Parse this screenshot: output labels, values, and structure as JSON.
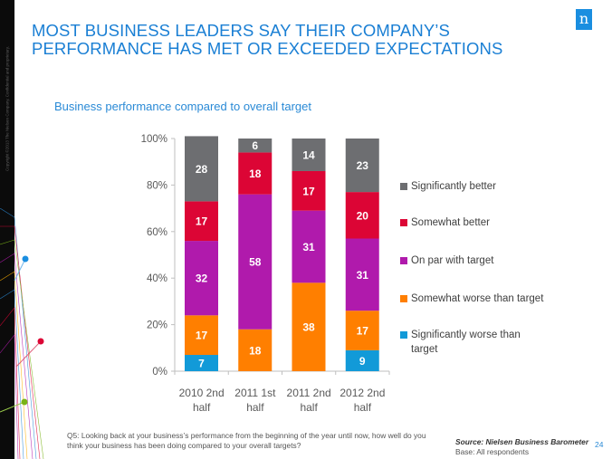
{
  "slide": {
    "copyright": "Copyright ©2013 The Nielsen Company. Confidential and proprietary.",
    "logo_letter": "n",
    "title": "MOST BUSINESS LEADERS SAY THEIR COMPANY’S PERFORMANCE HAS MET OR EXCEEDED EXPECTATIONS",
    "subtitle": "Business performance compared to overall target",
    "question": "Q5: Looking back at your business’s performance from the beginning of the year until now, how well do you think your business has been doing compared to your overall targets?",
    "source": "Source: Nielsen Business Barometer",
    "base": "Base: All respondents",
    "page_number": "24",
    "accent_color": "#1a7fd4"
  },
  "chart_data": {
    "type": "bar",
    "stacked": true,
    "title": "Business performance compared to overall target",
    "xlabel": "",
    "ylabel": "",
    "ylim": [
      0,
      100
    ],
    "y_ticks": [
      "0%",
      "20%",
      "40%",
      "60%",
      "80%",
      "100%"
    ],
    "y_tick_values": [
      0,
      20,
      40,
      60,
      80,
      100
    ],
    "grid": false,
    "legend_position": "right",
    "categories": [
      "2010 2nd half",
      "2011 1st half",
      "2011 2nd half",
      "2012 2nd half"
    ],
    "category_lines": [
      [
        "2010 2nd",
        "half"
      ],
      [
        "2011 1st",
        "half"
      ],
      [
        "2011 2nd",
        "half"
      ],
      [
        "2012 2nd",
        "half"
      ]
    ],
    "series": [
      {
        "name": "Significantly worse than target",
        "color": "#129ad8",
        "values": [
          7,
          0,
          0,
          9
        ]
      },
      {
        "name": "Somewhat worse than target",
        "color": "#ff7f00",
        "values": [
          17,
          18,
          38,
          17
        ]
      },
      {
        "name": "On par with target",
        "color": "#b01aac",
        "values": [
          32,
          58,
          31,
          31
        ]
      },
      {
        "name": "Somewhat better",
        "color": "#dc0535",
        "values": [
          17,
          18,
          17,
          20
        ]
      },
      {
        "name": "Significantly better",
        "color": "#6d6e71",
        "values": [
          28,
          6,
          14,
          23
        ]
      }
    ],
    "legend_order": [
      "Significantly better",
      "Somewhat better",
      "On par with target",
      "Somewhat worse than target",
      "Significantly worse than target"
    ]
  }
}
